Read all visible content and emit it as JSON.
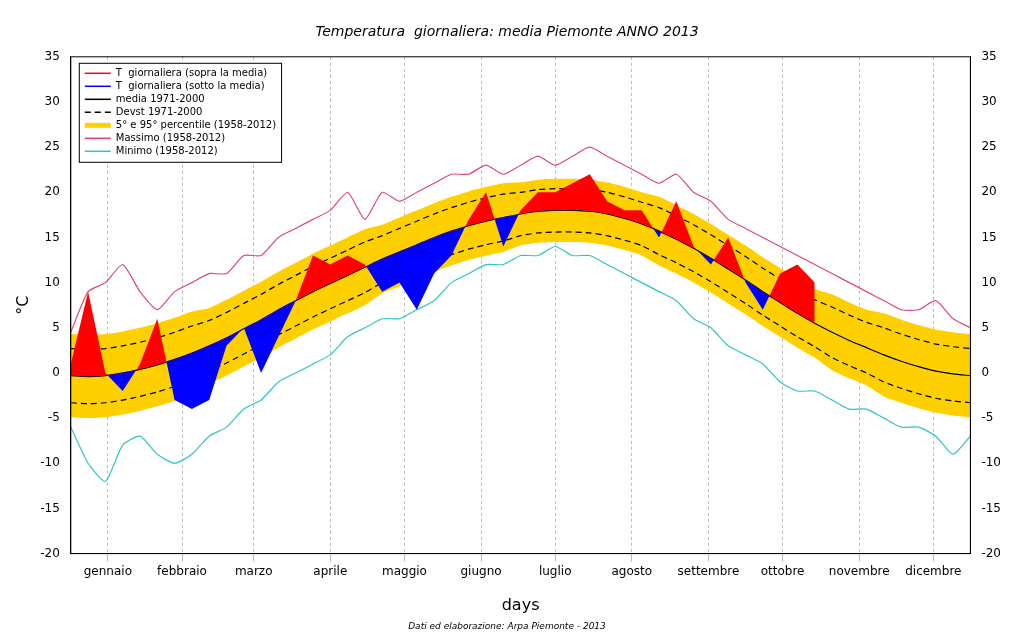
{
  "chart_data": {
    "type": "line",
    "title": "Temperatura  giornaliera: media Piemonte ANNO 2013",
    "x_label": "days",
    "y_label": "°C",
    "source": "Dati ed elaborazione: Arpa Piemonte - 2013",
    "x": [
      1,
      8,
      15,
      22,
      29,
      36,
      43,
      50,
      57,
      64,
      71,
      78,
      85,
      92,
      99,
      106,
      113,
      120,
      127,
      134,
      141,
      148,
      155,
      162,
      169,
      176,
      183,
      190,
      197,
      204,
      211,
      218,
      225,
      232,
      239,
      246,
      253,
      260,
      267,
      274,
      281,
      288,
      295,
      302,
      309,
      316,
      323,
      330,
      337,
      344,
      351,
      358,
      365
    ],
    "xlim": [
      1,
      365
    ],
    "xticks": [
      {
        "value": 16,
        "label": "gennaio"
      },
      {
        "value": 46,
        "label": "febbraio"
      },
      {
        "value": 75,
        "label": "marzo"
      },
      {
        "value": 106,
        "label": "aprile"
      },
      {
        "value": 136,
        "label": "maggio"
      },
      {
        "value": 167,
        "label": "giugno"
      },
      {
        "value": 197,
        "label": "luglio"
      },
      {
        "value": 228,
        "label": "agosto"
      },
      {
        "value": 259,
        "label": "settembre"
      },
      {
        "value": 289,
        "label": "ottobre"
      },
      {
        "value": 320,
        "label": "novembre"
      },
      {
        "value": 350,
        "label": "dicembre"
      }
    ],
    "ylim": [
      -20,
      35
    ],
    "yticks": [
      -20,
      -15,
      -10,
      -5,
      0,
      5,
      10,
      15,
      20,
      25,
      30,
      35
    ],
    "grid": true,
    "legend": "upper left",
    "series": [
      {
        "type": "area",
        "names": [
          "T  giornaliera (sopra la media)",
          "T  giornaliera (sotto la media)"
        ],
        "colors": [
          "#ff0000",
          "#0000ff"
        ],
        "values": [
          1,
          9,
          0,
          -2,
          1,
          6,
          -3,
          -4,
          -3,
          3,
          5,
          0,
          4,
          8,
          13,
          12,
          13,
          12,
          9,
          10,
          7,
          11,
          13,
          17,
          20,
          14,
          18,
          20,
          20,
          21,
          22,
          19,
          18,
          18,
          15,
          19,
          14,
          12,
          15,
          10,
          7,
          11,
          12,
          10,
          null,
          null,
          null,
          null,
          null,
          null,
          null,
          null,
          null
        ]
      },
      {
        "type": "line",
        "name": "media 1971-2000",
        "color": "#000000",
        "line_style": "solid",
        "values": [
          -0.3,
          -0.4,
          -0.3,
          0.0,
          0.4,
          0.9,
          1.5,
          2.2,
          3.0,
          3.9,
          4.9,
          5.9,
          7.0,
          8.0,
          9.0,
          9.9,
          10.8,
          11.7,
          12.6,
          13.4,
          14.2,
          15.0,
          15.7,
          16.3,
          16.8,
          17.2,
          17.6,
          17.9,
          18.0,
          18.0,
          17.9,
          17.6,
          17.1,
          16.5,
          15.7,
          14.8,
          13.8,
          12.7,
          11.5,
          10.3,
          9.0,
          7.8,
          6.6,
          5.5,
          4.5,
          3.6,
          2.8,
          2.0,
          1.3,
          0.7,
          0.2,
          -0.1,
          -0.3
        ]
      },
      {
        "type": "lines",
        "name": "Devst 1971-2000",
        "color": "#000000",
        "line_style": "dashed",
        "upper": [
          2.7,
          2.6,
          2.7,
          3.0,
          3.4,
          3.9,
          4.5,
          5.2,
          5.8,
          6.7,
          7.7,
          8.7,
          9.8,
          10.8,
          11.8,
          12.7,
          13.6,
          14.5,
          15.2,
          16.0,
          16.8,
          17.6,
          18.3,
          18.9,
          19.4,
          19.8,
          20.0,
          20.3,
          20.4,
          20.4,
          20.3,
          20.0,
          19.5,
          18.9,
          18.3,
          17.4,
          16.4,
          15.3,
          14.1,
          12.9,
          11.6,
          10.4,
          9.2,
          8.1,
          7.3,
          6.4,
          5.6,
          5.0,
          4.3,
          3.7,
          3.2,
          2.9,
          2.7
        ],
        "lower": [
          -3.3,
          -3.4,
          -3.3,
          -3.0,
          -2.6,
          -2.1,
          -1.5,
          -0.8,
          0.2,
          1.1,
          2.1,
          3.1,
          4.2,
          5.2,
          6.2,
          7.1,
          8.0,
          8.9,
          10.0,
          10.8,
          11.6,
          12.4,
          13.1,
          13.7,
          14.2,
          14.6,
          15.2,
          15.5,
          15.6,
          15.6,
          15.5,
          15.2,
          14.7,
          14.1,
          13.1,
          12.2,
          11.2,
          10.1,
          8.9,
          7.7,
          6.4,
          5.2,
          4.0,
          2.9,
          1.7,
          0.8,
          0.0,
          -1.0,
          -1.7,
          -2.3,
          -2.8,
          -3.1,
          -3.3
        ]
      },
      {
        "type": "band",
        "name": "5° e 95° percentile (1958-2012)",
        "color": "#ffd000",
        "upper": [
          4.3,
          4.2,
          4.3,
          4.6,
          5.0,
          5.5,
          6.1,
          6.8,
          7.2,
          8.1,
          9.1,
          10.1,
          11.2,
          12.2,
          13.2,
          14.1,
          15.0,
          15.9,
          16.4,
          17.2,
          18.0,
          18.8,
          19.5,
          20.1,
          20.6,
          21.0,
          21.1,
          21.4,
          21.5,
          21.5,
          21.4,
          21.1,
          20.6,
          20.0,
          19.5,
          18.6,
          17.6,
          16.5,
          15.3,
          14.1,
          12.8,
          11.6,
          10.4,
          9.3,
          8.7,
          7.8,
          7.0,
          6.6,
          5.9,
          5.3,
          4.8,
          4.5,
          4.3
        ],
        "lower": [
          -4.9,
          -5.0,
          -4.9,
          -4.6,
          -4.2,
          -3.7,
          -3.1,
          -2.4,
          -1.2,
          -0.3,
          0.7,
          1.7,
          2.8,
          3.8,
          4.8,
          5.7,
          6.6,
          7.5,
          8.8,
          9.6,
          10.4,
          11.2,
          11.9,
          12.5,
          13.0,
          13.4,
          14.1,
          14.4,
          14.5,
          14.5,
          14.4,
          14.1,
          13.6,
          13.0,
          11.9,
          11.0,
          10.0,
          8.9,
          7.7,
          6.5,
          5.2,
          4.0,
          2.8,
          1.7,
          0.3,
          -0.6,
          -1.4,
          -2.6,
          -3.3,
          -3.9,
          -4.4,
          -4.7,
          -4.9
        ]
      },
      {
        "type": "line",
        "name": "Massimo (1958-2012)",
        "color": "#e0457f",
        "line_style": "solid",
        "values": [
          4.5,
          9,
          10,
          12,
          9,
          7,
          9,
          10,
          11,
          11,
          13,
          13,
          15,
          16,
          17,
          18,
          20,
          17,
          20,
          19,
          20,
          21,
          22,
          22,
          23,
          22,
          23,
          24,
          23,
          24,
          25,
          24,
          23,
          22,
          21,
          22,
          20,
          19,
          17,
          16,
          15,
          14,
          13,
          12,
          11,
          10,
          9,
          8,
          7,
          7,
          8,
          6,
          5
        ]
      },
      {
        "type": "line",
        "name": "Minimo (1958-2012)",
        "color": "#2ec4c4",
        "line_style": "solid",
        "values": [
          -6,
          -10,
          -12,
          -8,
          -7,
          -9,
          -10,
          -9,
          -7,
          -6,
          -4,
          -3,
          -1,
          0,
          1,
          2,
          4,
          5,
          6,
          6,
          7,
          8,
          10,
          11,
          12,
          12,
          13,
          13,
          14,
          13,
          13,
          12,
          11,
          10,
          9,
          8,
          6,
          5,
          3,
          2,
          1,
          -1,
          -2,
          -2,
          -3,
          -4,
          -4,
          -5,
          -6,
          -6,
          -7,
          -9,
          -7
        ]
      }
    ]
  }
}
